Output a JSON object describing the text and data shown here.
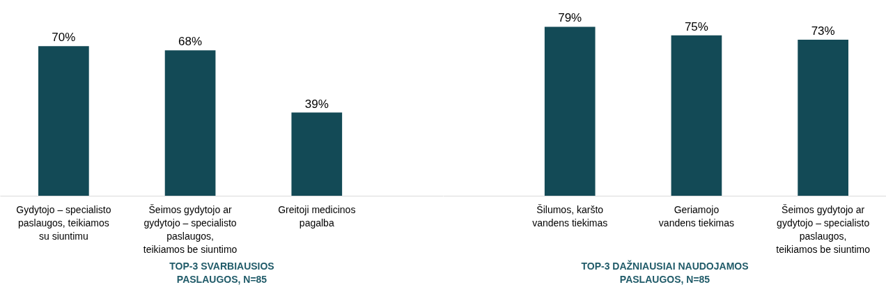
{
  "chart_data": [
    {
      "type": "bar",
      "xlabel": "TOP-3 SVARBIAUSIOS\nPASLAUGOS, N=85",
      "categories": [
        "Gydytojo – specialisto\npaslaugos, teikiamos\nsu siuntimu",
        "Šeimos gydytojo ar\ngydytojo – specialisto\npaslaugos,\nteikiamos be siuntimo",
        "Greitoji medicinos\npagalba"
      ],
      "values": [
        70,
        68,
        39
      ],
      "value_labels": [
        "70%",
        "68%",
        "39%"
      ],
      "color": "#134a56",
      "tick_labels": "x",
      "grid": false
    },
    {
      "type": "bar",
      "xlabel": "TOP-3 DAŽNIAUSIAI NAUDOJAMOS\nPASLAUGOS, N=85",
      "categories": [
        "Šilumos, karšto\nvandens tiekimas",
        "Geriamojo\nvandens tiekimas",
        "Šeimos gydytojo ar\ngydytojo – specialisto\npaslaugos,\nteikiamos be siuntimo"
      ],
      "values": [
        79,
        75,
        73
      ],
      "value_labels": [
        "79%",
        "75%",
        "73%"
      ],
      "color": "#134a56",
      "tick_labels": "x",
      "grid": false
    }
  ]
}
